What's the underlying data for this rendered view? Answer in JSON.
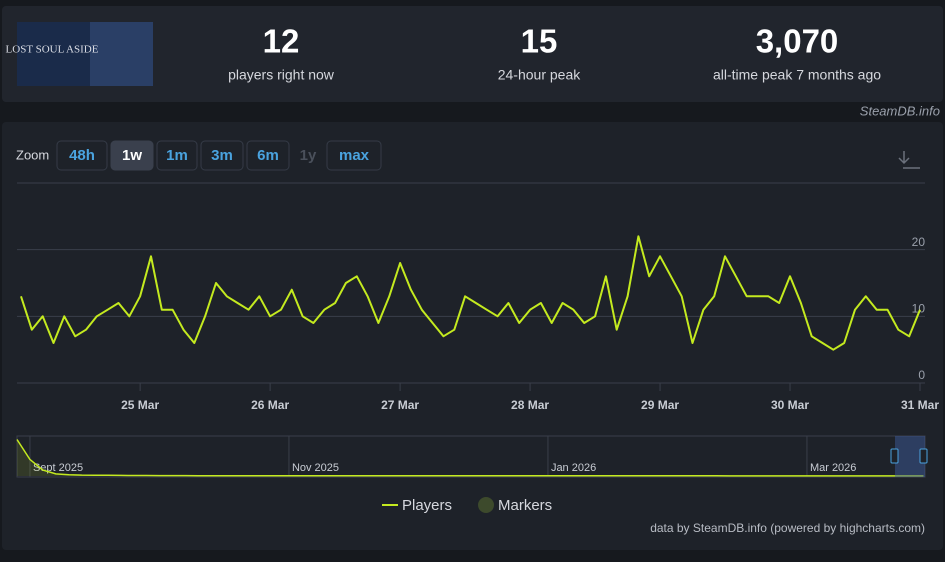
{
  "header": {
    "image_text": "LOST SOUL ASIDE",
    "stats": [
      {
        "value": "12",
        "label": "players right now"
      },
      {
        "value": "15",
        "label": "24-hour peak"
      },
      {
        "value": "3,070",
        "label": "all-time peak 7 months ago"
      }
    ],
    "source": "SteamDB.info"
  },
  "zoom": {
    "label": "Zoom",
    "buttons": [
      "48h",
      "1w",
      "1m",
      "3m",
      "6m",
      "1y",
      "max"
    ],
    "active": 1,
    "disabled": 5
  },
  "chart_data": [
    {
      "type": "line",
      "categories": [
        null,
        null,
        null,
        null,
        null,
        null,
        null,
        null,
        null,
        null,
        null,
        "25 Mar",
        null,
        null,
        null,
        null,
        null,
        null,
        null,
        null,
        null,
        null,
        null,
        "26 Mar",
        null,
        null,
        null,
        null,
        null,
        null,
        null,
        null,
        null,
        null,
        null,
        "27 Mar",
        null,
        null,
        null,
        null,
        null,
        null,
        null,
        null,
        null,
        null,
        null,
        "28 Mar",
        null,
        null,
        null,
        null,
        null,
        null,
        null,
        null,
        null,
        null,
        null,
        "29 Mar",
        null,
        null,
        null,
        null,
        null,
        null,
        null,
        null,
        null,
        null,
        null,
        "30 Mar",
        null,
        null,
        null,
        null,
        null,
        null,
        null,
        null,
        null,
        null,
        null,
        "31 Mar"
      ],
      "series": [
        {
          "name": "Players",
          "color": "#c4ea1f",
          "values": [
            13,
            8,
            10,
            6,
            10,
            7,
            8,
            10,
            11,
            12,
            10,
            13,
            19,
            11,
            11,
            8,
            6,
            10,
            15,
            13,
            12,
            11,
            13,
            10,
            11,
            14,
            10,
            9,
            11,
            12,
            15,
            16,
            13,
            9,
            13,
            18,
            14,
            11,
            9,
            7,
            8,
            13,
            12,
            11,
            10,
            12,
            9,
            11,
            12,
            9,
            12,
            11,
            9,
            10,
            16,
            8,
            13,
            22,
            16,
            19,
            16,
            13,
            6,
            11,
            13,
            19,
            16,
            13,
            13,
            13,
            12,
            16,
            12,
            7,
            6,
            5,
            6,
            11,
            13,
            11,
            11,
            8,
            7,
            11
          ]
        }
      ],
      "markers_legend": {
        "name": "Markers",
        "color": "#3d4a2c"
      },
      "ylim": [
        0,
        30
      ],
      "yticks": [
        0,
        10,
        20
      ],
      "grid": true
    },
    {
      "type": "navigator",
      "categories": [
        null,
        "Sept 2025",
        null,
        null,
        null,
        null,
        null,
        null,
        null,
        null,
        null,
        null,
        null,
        null,
        null,
        null,
        null,
        null,
        null,
        null,
        null,
        "Nov 2025",
        null,
        null,
        null,
        null,
        null,
        null,
        null,
        null,
        null,
        null,
        null,
        null,
        null,
        null,
        null,
        null,
        null,
        null,
        null,
        "Jan 2026",
        null,
        null,
        null,
        null,
        null,
        null,
        null,
        null,
        null,
        null,
        null,
        null,
        null,
        null,
        null,
        null,
        null,
        null,
        null,
        "Mar 2026",
        null,
        null,
        null,
        null,
        null,
        null,
        null,
        null,
        null
      ],
      "series": [
        {
          "color": "#c4ea1f",
          "values": [
            3070,
            1400,
            500,
            180,
            110,
            80,
            65,
            55,
            48,
            42,
            38,
            35,
            32,
            30,
            28,
            27,
            26,
            25,
            24,
            23,
            22,
            22,
            21,
            21,
            20,
            20,
            19,
            19,
            18,
            18,
            18,
            17,
            17,
            17,
            16,
            16,
            16,
            16,
            15,
            15,
            15,
            15,
            14,
            14,
            14,
            14,
            14,
            13,
            13,
            13,
            13,
            13,
            13,
            13,
            13,
            12,
            12,
            12,
            12,
            12,
            12,
            12,
            12,
            12,
            12,
            12,
            12,
            12,
            12,
            12,
            12
          ]
        }
      ],
      "ylim": [
        0,
        3200
      ]
    }
  ],
  "credit": "data by SteamDB.info (powered by highcharts.com)"
}
